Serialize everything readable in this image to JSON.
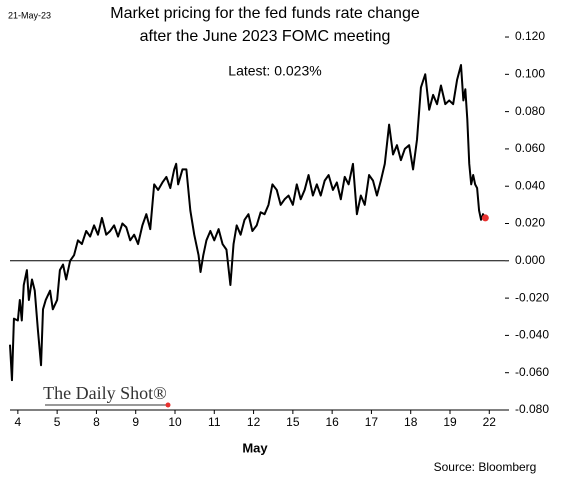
{
  "chart_data": {
    "type": "line",
    "date": "21-May-23",
    "title": [
      "Market pricing for the fed funds rate change",
      "after the June 2023 FOMC meeting"
    ],
    "annotation": "Latest:  0.023%",
    "x_label": "May",
    "source": "Source: Bloomberg",
    "watermark": "The Daily Shot®",
    "xlim": [
      -0.2,
      12.4
    ],
    "xticks": [
      {
        "value": 0,
        "label": "4"
      },
      {
        "value": 1,
        "label": "5"
      },
      {
        "value": 2,
        "label": "8"
      },
      {
        "value": 3,
        "label": "9"
      },
      {
        "value": 4,
        "label": "10"
      },
      {
        "value": 5,
        "label": "11"
      },
      {
        "value": 6,
        "label": "12"
      },
      {
        "value": 7,
        "label": "15"
      },
      {
        "value": 8,
        "label": "16"
      },
      {
        "value": 9,
        "label": "17"
      },
      {
        "value": 10,
        "label": "18"
      },
      {
        "value": 11,
        "label": "19"
      },
      {
        "value": 12,
        "label": "22"
      }
    ],
    "ylim": [
      -0.08,
      0.125
    ],
    "yticks": [
      {
        "value": 0.12,
        "label": "0.120"
      },
      {
        "value": 0.1,
        "label": "0.100"
      },
      {
        "value": 0.08,
        "label": "0.080"
      },
      {
        "value": 0.06,
        "label": "0.060"
      },
      {
        "value": 0.04,
        "label": "0.040"
      },
      {
        "value": 0.02,
        "label": "0.020"
      },
      {
        "value": 0,
        "label": "0.000"
      },
      {
        "value": -0.02,
        "label": "-0.020"
      },
      {
        "value": -0.04,
        "label": "-0.040"
      },
      {
        "value": -0.06,
        "label": "-0.060"
      },
      {
        "value": -0.08,
        "label": "-0.080"
      }
    ],
    "color": "#000000",
    "latest_color": "#e8312f",
    "x": [
      -0.2,
      -0.15,
      -0.1,
      0,
      0.05,
      0.1,
      0.15,
      0.23,
      0.28,
      0.36,
      0.43,
      0.51,
      0.59,
      0.64,
      0.71,
      0.82,
      0.89,
      1.0,
      1.07,
      1.15,
      1.23,
      1.33,
      1.43,
      1.53,
      1.63,
      1.74,
      1.84,
      1.94,
      2.04,
      2.14,
      2.25,
      2.35,
      2.45,
      2.55,
      2.66,
      2.76,
      2.86,
      2.96,
      3.06,
      3.17,
      3.27,
      3.37,
      3.47,
      3.57,
      3.68,
      3.78,
      3.88,
      3.98,
      4.03,
      4.08,
      4.19,
      4.29,
      4.39,
      4.49,
      4.6,
      4.65,
      4.72,
      4.8,
      4.9,
      5.0,
      5.11,
      5.21,
      5.31,
      5.41,
      5.49,
      5.57,
      5.67,
      5.77,
      5.87,
      5.97,
      6.08,
      6.18,
      6.28,
      6.38,
      6.48,
      6.59,
      6.69,
      6.79,
      6.89,
      7.0,
      7.1,
      7.2,
      7.3,
      7.4,
      7.51,
      7.61,
      7.71,
      7.81,
      7.91,
      8.02,
      8.12,
      8.22,
      8.32,
      8.42,
      8.53,
      8.63,
      8.73,
      8.83,
      8.94,
      9.04,
      9.14,
      9.24,
      9.34,
      9.45,
      9.55,
      9.65,
      9.75,
      9.85,
      9.96,
      10.06,
      10.16,
      10.26,
      10.37,
      10.47,
      10.57,
      10.67,
      10.77,
      10.88,
      10.98,
      11.08,
      11.18,
      11.28,
      11.34,
      11.39,
      11.44,
      11.49,
      11.54,
      11.59,
      11.64,
      11.69,
      11.74,
      11.79,
      11.84,
      11.9
    ],
    "values": [
      -0.045,
      -0.064,
      -0.031,
      -0.032,
      -0.021,
      -0.032,
      -0.013,
      -0.005,
      -0.021,
      -0.01,
      -0.016,
      -0.037,
      -0.056,
      -0.026,
      -0.021,
      -0.016,
      -0.026,
      -0.021,
      -0.005,
      -0.002,
      -0.01,
      0.0,
      0.003,
      0.011,
      0.009,
      0.016,
      0.013,
      0.019,
      0.014,
      0.023,
      0.014,
      0.016,
      0.019,
      0.013,
      0.02,
      0.018,
      0.011,
      0.014,
      0.009,
      0.019,
      0.025,
      0.017,
      0.041,
      0.038,
      0.042,
      0.045,
      0.039,
      0.049,
      0.052,
      0.041,
      0.049,
      0.049,
      0.027,
      0.014,
      0.003,
      -0.006,
      0.003,
      0.011,
      0.016,
      0.011,
      0.017,
      0.009,
      0.006,
      -0.013,
      0.009,
      0.019,
      0.014,
      0.022,
      0.025,
      0.016,
      0.019,
      0.026,
      0.025,
      0.03,
      0.041,
      0.038,
      0.03,
      0.033,
      0.035,
      0.03,
      0.041,
      0.033,
      0.038,
      0.046,
      0.035,
      0.041,
      0.035,
      0.043,
      0.046,
      0.038,
      0.042,
      0.033,
      0.045,
      0.041,
      0.052,
      0.025,
      0.035,
      0.03,
      0.046,
      0.043,
      0.035,
      0.043,
      0.052,
      0.073,
      0.057,
      0.062,
      0.054,
      0.06,
      0.062,
      0.049,
      0.065,
      0.093,
      0.1,
      0.081,
      0.089,
      0.084,
      0.094,
      0.084,
      0.086,
      0.084,
      0.097,
      0.105,
      0.086,
      0.092,
      0.076,
      0.052,
      0.041,
      0.046,
      0.041,
      0.039,
      0.027,
      0.022,
      0.025,
      0.023
    ]
  }
}
